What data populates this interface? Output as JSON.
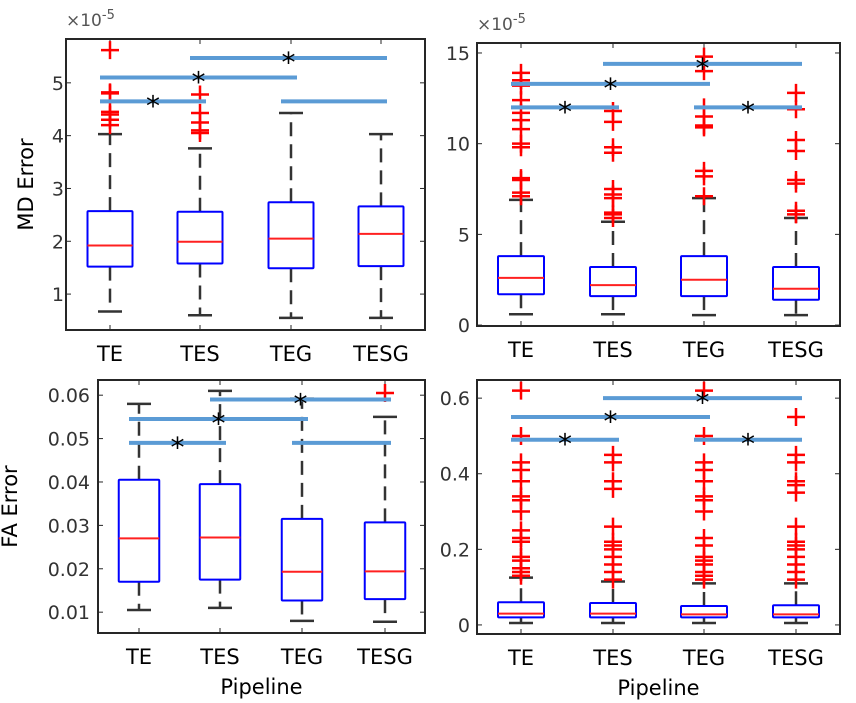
{
  "chart_data": [
    {
      "type": "box",
      "ylabel": "MD Error",
      "xlabel": "",
      "multiplier": "×10",
      "multiplier_exp": "-5",
      "categories": [
        "TE",
        "TES",
        "TEG",
        "TESG"
      ],
      "ylim": [
        0.32,
        5.83
      ],
      "yticks": [
        1,
        2,
        3,
        4,
        5
      ],
      "ytick_labels": [
        "1",
        "2",
        "3",
        "4",
        "5"
      ],
      "boxes": [
        {
          "q1": 1.52,
          "median": 1.92,
          "q3": 2.57,
          "whisker_low": 0.67,
          "whisker_high": 4.03,
          "outliers": [
            4.2,
            4.3,
            4.4,
            4.45,
            4.8,
            4.82,
            5.62
          ]
        },
        {
          "q1": 1.58,
          "median": 1.99,
          "q3": 2.56,
          "whisker_low": 0.6,
          "whisker_high": 3.76,
          "outliers": [
            4.05,
            4.1,
            4.25,
            4.43,
            4.78
          ]
        },
        {
          "q1": 1.49,
          "median": 2.05,
          "q3": 2.74,
          "whisker_low": 0.55,
          "whisker_high": 4.43,
          "outliers": []
        },
        {
          "q1": 1.53,
          "median": 2.14,
          "q3": 2.66,
          "whisker_low": 0.55,
          "whisker_high": 4.03,
          "outliers": []
        }
      ],
      "significance": [
        {
          "from": "TE",
          "to": "TES",
          "level": 4.65,
          "label": "*"
        },
        {
          "from": "TE",
          "to": "TEG",
          "level": 5.1,
          "label": "*"
        },
        {
          "from": "TES",
          "to": "TESG",
          "level": 5.47,
          "label": "*"
        },
        {
          "from": "TEG",
          "to": "TESG",
          "level": 4.65,
          "label": ""
        }
      ]
    },
    {
      "type": "box",
      "ylabel": "",
      "xlabel": "",
      "multiplier": "×10",
      "multiplier_exp": "-5",
      "categories": [
        "TE",
        "TES",
        "TEG",
        "TESG"
      ],
      "ylim": [
        -0.05,
        15.55
      ],
      "yticks": [
        0,
        5,
        10,
        15
      ],
      "ytick_labels": [
        "0",
        "5",
        "10",
        "15"
      ],
      "boxes": [
        {
          "q1": 1.7,
          "median": 2.6,
          "q3": 3.8,
          "whisker_low": 0.6,
          "whisker_high": 6.9,
          "outliers": [
            7.1,
            7.3,
            8.0,
            8.1,
            9.8,
            10.0,
            10.8,
            11.3,
            11.7,
            12.4,
            13.2,
            13.5,
            13.9
          ]
        },
        {
          "q1": 1.6,
          "median": 2.2,
          "q3": 3.2,
          "whisker_low": 0.6,
          "whisker_high": 5.7,
          "outliers": [
            5.9,
            6.1,
            6.2,
            7.0,
            7.2,
            7.5,
            9.5,
            9.8,
            11.2,
            11.8
          ]
        },
        {
          "q1": 1.6,
          "median": 2.5,
          "q3": 3.8,
          "whisker_low": 0.55,
          "whisker_high": 7.0,
          "outliers": [
            7.1,
            8.2,
            8.5,
            10.9,
            11.0,
            11.5,
            12.0,
            14.0,
            14.8
          ]
        },
        {
          "q1": 1.4,
          "median": 2.0,
          "q3": 3.2,
          "whisker_low": 0.55,
          "whisker_high": 5.9,
          "outliers": [
            6.1,
            6.3,
            7.8,
            8.0,
            9.6,
            10.2,
            11.9,
            12.8
          ]
        }
      ],
      "significance": [
        {
          "from": "TE",
          "to": "TES",
          "level": 12.0,
          "label": "*"
        },
        {
          "from": "TE",
          "to": "TEG",
          "level": 13.3,
          "label": "*"
        },
        {
          "from": "TES",
          "to": "TESG",
          "level": 14.4,
          "label": "*"
        },
        {
          "from": "TEG",
          "to": "TESG",
          "level": 12.0,
          "label": "*"
        }
      ]
    },
    {
      "type": "box",
      "ylabel": "FA Error",
      "xlabel": "Pipeline",
      "categories": [
        "TE",
        "TES",
        "TEG",
        "TESG"
      ],
      "ylim": [
        0.0052,
        0.0635
      ],
      "yticks": [
        0.01,
        0.02,
        0.03,
        0.04,
        0.05,
        0.06
      ],
      "ytick_labels": [
        "0.01",
        "0.02",
        "0.03",
        "0.04",
        "0.05",
        "0.06"
      ],
      "boxes": [
        {
          "q1": 0.017,
          "median": 0.027,
          "q3": 0.0405,
          "whisker_low": 0.0105,
          "whisker_high": 0.058,
          "outliers": []
        },
        {
          "q1": 0.0175,
          "median": 0.0272,
          "q3": 0.0395,
          "whisker_low": 0.011,
          "whisker_high": 0.061,
          "outliers": []
        },
        {
          "q1": 0.0127,
          "median": 0.0193,
          "q3": 0.0315,
          "whisker_low": 0.008,
          "whisker_high": 0.0592,
          "outliers": []
        },
        {
          "q1": 0.013,
          "median": 0.0194,
          "q3": 0.0307,
          "whisker_low": 0.0078,
          "whisker_high": 0.055,
          "outliers": [
            0.0605
          ]
        }
      ],
      "significance": [
        {
          "from": "TE",
          "to": "TES",
          "level": 0.049,
          "label": "*"
        },
        {
          "from": "TE",
          "to": "TEG",
          "level": 0.0545,
          "label": "*"
        },
        {
          "from": "TES",
          "to": "TESG",
          "level": 0.059,
          "label": "*"
        },
        {
          "from": "TEG",
          "to": "TESG",
          "level": 0.049,
          "label": ""
        }
      ]
    },
    {
      "type": "box",
      "ylabel": "",
      "xlabel": "Pipeline",
      "categories": [
        "TE",
        "TES",
        "TEG",
        "TESG"
      ],
      "ylim": [
        -0.024,
        0.648
      ],
      "yticks": [
        0,
        0.2,
        0.4,
        0.6
      ],
      "ytick_labels": [
        "0",
        "0.2",
        "0.4",
        "0.6"
      ],
      "boxes": [
        {
          "q1": 0.02,
          "median": 0.03,
          "q3": 0.06,
          "whisker_low": 0.005,
          "whisker_high": 0.125,
          "outliers": [
            0.13,
            0.14,
            0.15,
            0.17,
            0.18,
            0.22,
            0.23,
            0.25,
            0.3,
            0.33,
            0.34,
            0.38,
            0.41,
            0.43,
            0.5,
            0.62
          ]
        },
        {
          "q1": 0.02,
          "median": 0.03,
          "q3": 0.058,
          "whisker_low": 0.005,
          "whisker_high": 0.115,
          "outliers": [
            0.12,
            0.14,
            0.16,
            0.18,
            0.2,
            0.21,
            0.22,
            0.26,
            0.36,
            0.38,
            0.43,
            0.45
          ]
        },
        {
          "q1": 0.02,
          "median": 0.028,
          "q3": 0.05,
          "whisker_low": 0.005,
          "whisker_high": 0.11,
          "outliers": [
            0.12,
            0.13,
            0.14,
            0.16,
            0.17,
            0.18,
            0.21,
            0.23,
            0.3,
            0.33,
            0.34,
            0.38,
            0.41,
            0.43,
            0.5,
            0.62
          ]
        },
        {
          "q1": 0.02,
          "median": 0.028,
          "q3": 0.052,
          "whisker_low": 0.005,
          "whisker_high": 0.11,
          "outliers": [
            0.12,
            0.14,
            0.16,
            0.18,
            0.2,
            0.21,
            0.22,
            0.26,
            0.35,
            0.37,
            0.38,
            0.43,
            0.45,
            0.55
          ]
        }
      ],
      "significance": [
        {
          "from": "TE",
          "to": "TES",
          "level": 0.49,
          "label": "*"
        },
        {
          "from": "TE",
          "to": "TEG",
          "level": 0.55,
          "label": "*"
        },
        {
          "from": "TES",
          "to": "TESG",
          "level": 0.6,
          "label": "*"
        },
        {
          "from": "TEG",
          "to": "TESG",
          "level": 0.49,
          "label": "*"
        }
      ]
    }
  ],
  "colors": {
    "box": "#0000ff",
    "median": "#ff2020",
    "whisker": "#333333",
    "outlier": "#ff0000",
    "significance_bar": "#5b9bd5",
    "axes": "#262626"
  }
}
